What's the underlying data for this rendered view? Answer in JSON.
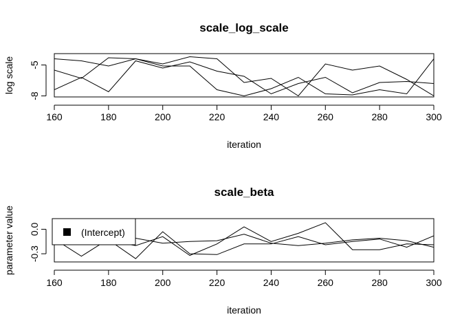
{
  "chart_data": [
    {
      "type": "line",
      "title": "scale_log_scale",
      "xlabel": "iteration",
      "ylabel": "log scale",
      "xlim": [
        160,
        300
      ],
      "ylim": [
        -8.1,
        -3.9
      ],
      "xticks": [
        160,
        180,
        200,
        220,
        240,
        260,
        280,
        300
      ],
      "yticks": [
        -5,
        -8
      ],
      "grid": false,
      "legend": null,
      "x": [
        160,
        170,
        180,
        190,
        200,
        210,
        220,
        230,
        240,
        250,
        260,
        270,
        280,
        290,
        300
      ],
      "series": [
        {
          "values": [
            -4.4,
            -4.6,
            -5.1,
            -4.4,
            -4.9,
            -4.2,
            -4.4,
            -6.7,
            -6.3,
            -8.0,
            -4.9,
            -5.5,
            -5.1,
            -6.4,
            -8.0
          ]
        },
        {
          "values": [
            -5.5,
            -6.3,
            -4.3,
            -4.4,
            -5.1,
            -5.1,
            -7.4,
            -8.0,
            -7.3,
            -6.2,
            -7.8,
            -7.9,
            -7.4,
            -7.8,
            -4.4
          ]
        },
        {
          "values": [
            -7.4,
            -6.2,
            -7.6,
            -4.6,
            -5.3,
            -4.7,
            -5.6,
            -6.1,
            -7.8,
            -6.8,
            -6.2,
            -7.7,
            -6.7,
            -6.6,
            -6.8
          ]
        }
      ]
    },
    {
      "type": "line",
      "title": "scale_beta",
      "xlabel": "iteration",
      "ylabel": "parameter value",
      "xlim": [
        160,
        300
      ],
      "ylim": [
        -0.4,
        0.13
      ],
      "xticks": [
        160,
        180,
        200,
        220,
        240,
        260,
        280,
        300
      ],
      "yticks": [
        0.0,
        -0.3
      ],
      "ytick_labels": [
        "0.0",
        "-0.3"
      ],
      "grid": false,
      "legend": {
        "position": "top-left",
        "entries": [
          "(Intercept)"
        ]
      },
      "x": [
        160,
        170,
        180,
        190,
        200,
        210,
        220,
        230,
        240,
        250,
        260,
        270,
        280,
        290,
        300
      ],
      "series": [
        {
          "values": [
            -0.12,
            -0.33,
            -0.12,
            -0.11,
            -0.17,
            -0.15,
            -0.14,
            -0.06,
            -0.17,
            -0.2,
            -0.17,
            -0.13,
            -0.11,
            -0.14,
            -0.22
          ]
        },
        {
          "values": [
            -0.15,
            -0.15,
            -0.13,
            -0.36,
            -0.03,
            -0.3,
            -0.31,
            -0.18,
            -0.18,
            -0.09,
            -0.19,
            -0.15,
            -0.12,
            -0.22,
            -0.08
          ]
        },
        {
          "values": [
            -0.1,
            -0.12,
            -0.14,
            -0.2,
            -0.09,
            -0.32,
            -0.18,
            0.03,
            -0.15,
            -0.05,
            0.08,
            -0.25,
            -0.25,
            -0.18,
            -0.19
          ]
        }
      ]
    }
  ]
}
